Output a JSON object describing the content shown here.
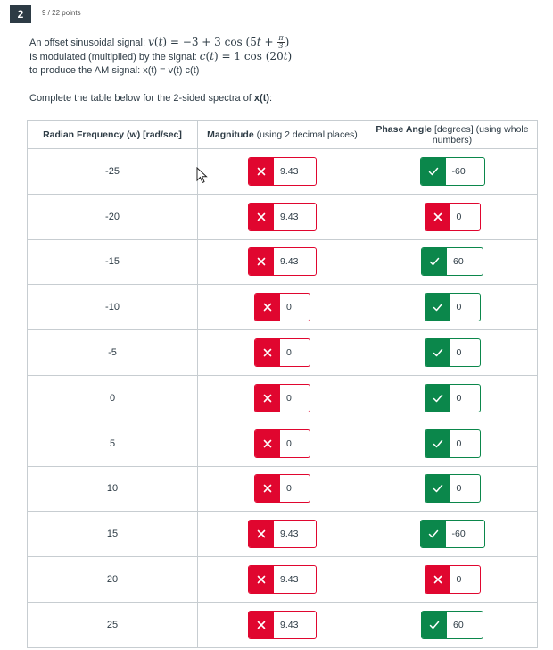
{
  "question": {
    "number": "2",
    "points": "9 / 22 points"
  },
  "prompt": {
    "line1_label": "An offset sinusoidal signal: ",
    "line2_label": "Is modulated (multiplied) by the signal: ",
    "line3": "to produce the AM signal: x(t) = v(t) c(t)"
  },
  "instructions": {
    "before": "Complete the table below for the 2-sided spectra of ",
    "bold": "x(t)",
    "after": ":"
  },
  "headers": {
    "freq": "Radian Frequency (w) [rad/sec]",
    "mag_bold": "Magnitude",
    "mag_rest": " (using 2 decimal places)",
    "phase_bold": "Phase Angle",
    "phase_rest": " [degrees] (using whole numbers)"
  },
  "rows": [
    {
      "freq": "-25",
      "magnitude": "9.43",
      "mag_status": "incorrect",
      "phase": "-60",
      "phase_status": "correct"
    },
    {
      "freq": "-20",
      "magnitude": "9.43",
      "mag_status": "incorrect",
      "phase": "0",
      "phase_status": "incorrect"
    },
    {
      "freq": "-15",
      "magnitude": "9.43",
      "mag_status": "incorrect",
      "phase": "60",
      "phase_status": "correct"
    },
    {
      "freq": "-10",
      "magnitude": "0",
      "mag_status": "incorrect",
      "phase": "0",
      "phase_status": "correct"
    },
    {
      "freq": "-5",
      "magnitude": "0",
      "mag_status": "incorrect",
      "phase": "0",
      "phase_status": "correct"
    },
    {
      "freq": "0",
      "magnitude": "0",
      "mag_status": "incorrect",
      "phase": "0",
      "phase_status": "correct"
    },
    {
      "freq": "5",
      "magnitude": "0",
      "mag_status": "incorrect",
      "phase": "0",
      "phase_status": "correct"
    },
    {
      "freq": "10",
      "magnitude": "0",
      "mag_status": "incorrect",
      "phase": "0",
      "phase_status": "correct"
    },
    {
      "freq": "15",
      "magnitude": "9.43",
      "mag_status": "incorrect",
      "phase": "-60",
      "phase_status": "correct"
    },
    {
      "freq": "20",
      "magnitude": "9.43",
      "mag_status": "incorrect",
      "phase": "0",
      "phase_status": "incorrect"
    },
    {
      "freq": "25",
      "magnitude": "9.43",
      "mag_status": "incorrect",
      "phase": "60",
      "phase_status": "correct"
    }
  ],
  "icons": {
    "incorrect": "close-icon",
    "correct": "check-icon",
    "pointer": "mouse-cursor-icon"
  },
  "colors": {
    "incorrect": "#e0062f",
    "correct": "#0b874b",
    "question_badge": "#2d3b45"
  }
}
